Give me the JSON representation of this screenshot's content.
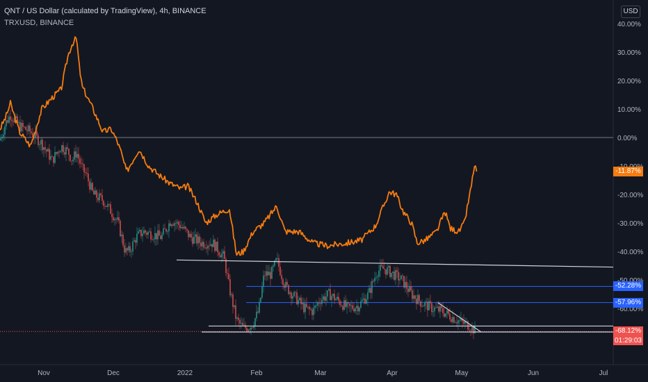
{
  "header": {
    "title": "QNT / US Dollar (calculated by TradingView), 4h, BINANCE",
    "subtitle": "TRXUSD, BINANCE",
    "currency_button": "USD"
  },
  "colors": {
    "background": "#131722",
    "compare_line": "#f57c10",
    "candle_up": "#26a69a",
    "candle_down": "#ef5350",
    "blue_level": "#2962ff",
    "white_line": "#d1d4dc",
    "current_price": "#ef5350"
  },
  "price_tags": {
    "compare": "-11.87%",
    "level_1": "-52.28%",
    "level_2": "-57.96%",
    "current": "-68.12%",
    "countdown": "01:29:03"
  },
  "chart_data": {
    "type": "line",
    "y_axis": {
      "unit": "%",
      "scale": "percent change",
      "ticks": [
        "40.00%",
        "30.00%",
        "20.00%",
        "10.00%",
        "0.00%",
        "-10.00%",
        "-20.00%",
        "-30.00%",
        "-40.00%",
        "-50.00%",
        "-60.00%"
      ],
      "ylim": [
        -68.12,
        40
      ]
    },
    "x_axis": {
      "ticks": [
        "Nov",
        "Dec",
        "2022",
        "Feb",
        "Mar",
        "Apr",
        "May",
        "Jun",
        "Jul"
      ]
    },
    "zero_line": 0,
    "series": [
      {
        "name": "TRXUSD, BINANCE",
        "style": "line",
        "points": [
          [
            0,
            3
          ],
          [
            8,
            7
          ],
          [
            15,
            12
          ],
          [
            28,
            2
          ],
          [
            44,
            -3
          ],
          [
            60,
            10
          ],
          [
            75,
            14
          ],
          [
            88,
            17
          ],
          [
            98,
            29
          ],
          [
            104,
            33
          ],
          [
            110,
            35
          ],
          [
            114,
            25
          ],
          [
            118,
            18
          ],
          [
            124,
            15
          ],
          [
            134,
            10
          ],
          [
            148,
            2
          ],
          [
            160,
            3
          ],
          [
            168,
            -1
          ],
          [
            174,
            -5
          ],
          [
            182,
            -12
          ],
          [
            200,
            -4
          ],
          [
            214,
            -10
          ],
          [
            228,
            -13
          ],
          [
            244,
            -16
          ],
          [
            260,
            -18
          ],
          [
            270,
            -17
          ],
          [
            284,
            -23
          ],
          [
            296,
            -30
          ],
          [
            312,
            -27
          ],
          [
            330,
            -25
          ],
          [
            340,
            -41
          ],
          [
            350,
            -40
          ],
          [
            364,
            -33
          ],
          [
            380,
            -30
          ],
          [
            398,
            -24
          ],
          [
            410,
            -33
          ],
          [
            430,
            -33
          ],
          [
            450,
            -37
          ],
          [
            470,
            -38
          ],
          [
            500,
            -37
          ],
          [
            520,
            -36
          ],
          [
            540,
            -31
          ],
          [
            560,
            -19
          ],
          [
            570,
            -20
          ],
          [
            580,
            -26
          ],
          [
            592,
            -30
          ],
          [
            600,
            -37
          ],
          [
            612,
            -36
          ],
          [
            628,
            -33
          ],
          [
            640,
            -26
          ],
          [
            648,
            -32
          ],
          [
            660,
            -33
          ],
          [
            668,
            -30
          ],
          [
            674,
            -22
          ],
          [
            678,
            -17
          ],
          [
            682,
            -10
          ],
          [
            686,
            -11.87
          ]
        ]
      },
      {
        "name": "QNT / US Dollar (calculated by TradingView)",
        "style": "candles",
        "points": [
          [
            0,
            -1
          ],
          [
            8,
            5
          ],
          [
            15,
            8
          ],
          [
            28,
            4
          ],
          [
            44,
            2
          ],
          [
            60,
            -2
          ],
          [
            75,
            -8
          ],
          [
            88,
            -3
          ],
          [
            98,
            -5
          ],
          [
            104,
            -8
          ],
          [
            110,
            -5
          ],
          [
            118,
            -11
          ],
          [
            124,
            -13
          ],
          [
            134,
            -20
          ],
          [
            148,
            -22
          ],
          [
            160,
            -26
          ],
          [
            170,
            -30
          ],
          [
            180,
            -40
          ],
          [
            186,
            -40
          ],
          [
            196,
            -35
          ],
          [
            206,
            -33
          ],
          [
            220,
            -34
          ],
          [
            232,
            -35
          ],
          [
            246,
            -29
          ],
          [
            260,
            -31
          ],
          [
            274,
            -35
          ],
          [
            290,
            -37
          ],
          [
            306,
            -37
          ],
          [
            322,
            -42
          ],
          [
            330,
            -53
          ],
          [
            340,
            -64
          ],
          [
            350,
            -67
          ],
          [
            362,
            -66
          ],
          [
            372,
            -61
          ],
          [
            380,
            -48
          ],
          [
            390,
            -48
          ],
          [
            398,
            -43
          ],
          [
            410,
            -52
          ],
          [
            424,
            -56
          ],
          [
            438,
            -60
          ],
          [
            450,
            -61
          ],
          [
            460,
            -57
          ],
          [
            474,
            -55
          ],
          [
            490,
            -58
          ],
          [
            500,
            -60
          ],
          [
            516,
            -59
          ],
          [
            530,
            -55
          ],
          [
            542,
            -47
          ],
          [
            552,
            -46
          ],
          [
            566,
            -48
          ],
          [
            578,
            -50
          ],
          [
            592,
            -55
          ],
          [
            606,
            -58
          ],
          [
            622,
            -60
          ],
          [
            636,
            -61
          ],
          [
            650,
            -63
          ],
          [
            664,
            -65
          ],
          [
            676,
            -66
          ],
          [
            684,
            -68.12
          ]
        ]
      }
    ],
    "levels": [
      {
        "type": "horizontal",
        "value": -52.28,
        "color": "blue"
      },
      {
        "type": "horizontal",
        "value": -57.96,
        "color": "blue"
      },
      {
        "type": "horizontal",
        "value": -68.12,
        "color": "red-dotted"
      }
    ],
    "trendlines": [
      {
        "from": [
          254,
          -43
        ],
        "to": [
          882,
          -45.5
        ]
      },
      {
        "from": [
          300,
          -66.2
        ],
        "to": [
          882,
          -66.2
        ]
      },
      {
        "from": [
          290,
          -68.3
        ],
        "to": [
          882,
          -68.3
        ]
      },
      {
        "from": [
          630,
          -58
        ],
        "to": [
          692,
          -68.3
        ]
      }
    ]
  }
}
